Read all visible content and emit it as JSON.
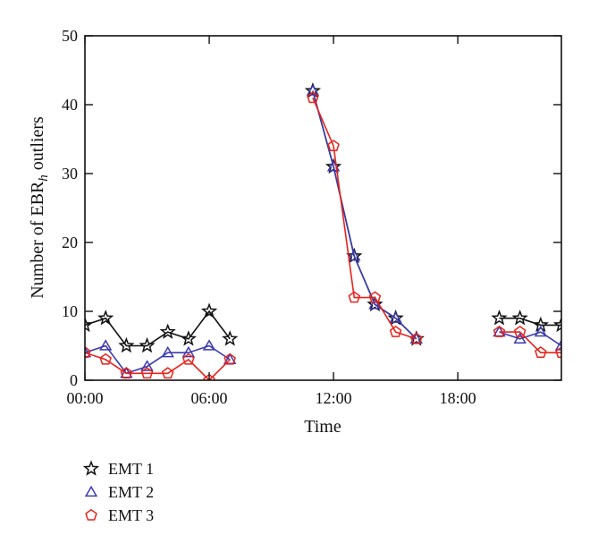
{
  "chart_data": {
    "type": "line",
    "title": "",
    "xlabel": "Time",
    "ylabel": {
      "prefix": "Number of EBR",
      "subscript": "h",
      "suffix": " outliers"
    },
    "xlim": [
      0,
      23
    ],
    "ylim": [
      0,
      50
    ],
    "x_ticks": [
      {
        "value": 0,
        "label": "00:00"
      },
      {
        "value": 6,
        "label": "06:00"
      },
      {
        "value": 12,
        "label": "12:00"
      },
      {
        "value": 18,
        "label": "18:00"
      }
    ],
    "y_ticks": [
      {
        "value": 0,
        "label": "0"
      },
      {
        "value": 10,
        "label": "10"
      },
      {
        "value": 20,
        "label": "20"
      },
      {
        "value": 30,
        "label": "30"
      },
      {
        "value": 40,
        "label": "40"
      },
      {
        "value": 50,
        "label": "50"
      }
    ],
    "grid": false,
    "legend_position": "below-left",
    "series": [
      {
        "name": "EMT 1",
        "color": "#111111",
        "marker": "star",
        "segments": [
          [
            [
              0,
              8
            ],
            [
              1,
              9
            ],
            [
              2,
              5
            ],
            [
              3,
              5
            ],
            [
              4,
              7
            ],
            [
              5,
              6
            ],
            [
              6,
              10
            ],
            [
              7,
              6
            ]
          ],
          [
            [
              11,
              42
            ],
            [
              12,
              31
            ],
            [
              13,
              18
            ],
            [
              14,
              11
            ],
            [
              15,
              9
            ],
            [
              16,
              6
            ]
          ],
          [
            [
              20,
              9
            ],
            [
              21,
              9
            ],
            [
              22,
              8
            ],
            [
              23,
              8
            ]
          ]
        ]
      },
      {
        "name": "EMT 2",
        "color": "#3b3bb0",
        "marker": "triangle",
        "segments": [
          [
            [
              0,
              4
            ],
            [
              1,
              5
            ],
            [
              2,
              1
            ],
            [
              3,
              2
            ],
            [
              4,
              4
            ],
            [
              5,
              4
            ],
            [
              6,
              5
            ],
            [
              7,
              3
            ]
          ],
          [
            [
              11,
              42
            ],
            [
              12,
              31
            ],
            [
              13,
              18
            ],
            [
              14,
              11
            ],
            [
              15,
              9
            ],
            [
              16,
              6
            ]
          ],
          [
            [
              20,
              7
            ],
            [
              21,
              6
            ],
            [
              22,
              7
            ],
            [
              23,
              5
            ]
          ]
        ]
      },
      {
        "name": "EMT 3",
        "color": "#e8231b",
        "marker": "pentagon",
        "segments": [
          [
            [
              0,
              4
            ],
            [
              1,
              3
            ],
            [
              2,
              1
            ],
            [
              3,
              1
            ],
            [
              4,
              1
            ],
            [
              5,
              3
            ],
            [
              6,
              0
            ],
            [
              7,
              3
            ]
          ],
          [
            [
              11,
              41
            ],
            [
              12,
              34
            ],
            [
              13,
              12
            ],
            [
              14,
              12
            ],
            [
              15,
              7
            ],
            [
              16,
              6
            ]
          ],
          [
            [
              20,
              7
            ],
            [
              21,
              7
            ],
            [
              22,
              4
            ],
            [
              23,
              4
            ]
          ]
        ]
      }
    ]
  }
}
